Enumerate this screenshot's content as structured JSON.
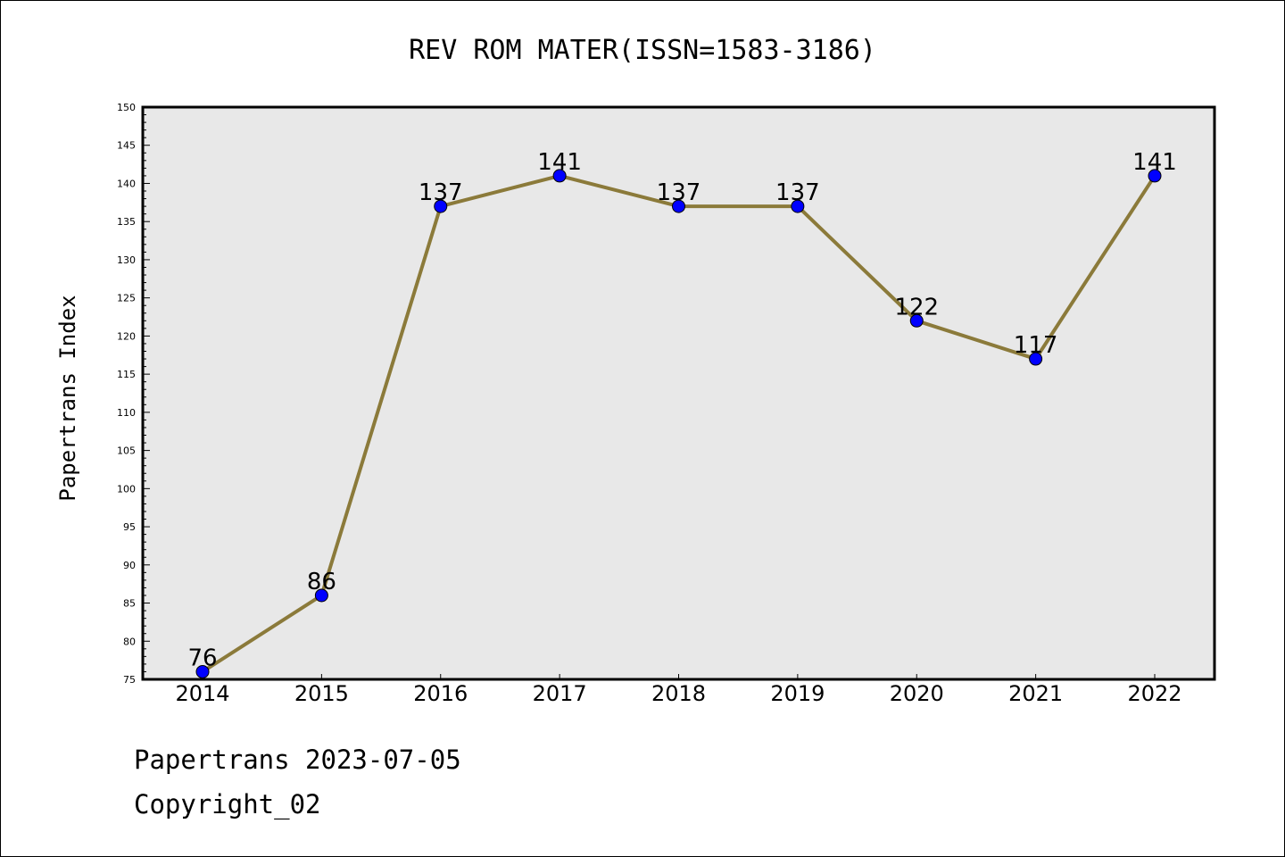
{
  "chart_data": {
    "type": "line",
    "title": "REV ROM MATER(ISSN=1583-3186)",
    "ylabel": "Papertrans Index",
    "xlabel": "",
    "categories": [
      "2014",
      "2015",
      "2016",
      "2017",
      "2018",
      "2019",
      "2020",
      "2021",
      "2022"
    ],
    "series": [
      {
        "values": [
          76,
          86,
          137,
          141,
          137,
          137,
          122,
          117,
          141
        ]
      }
    ],
    "ylim": [
      75,
      150
    ],
    "ytick_step": 5,
    "grid": false,
    "line_color": "#8b7a3a",
    "marker_color": "#0000ff",
    "plot_background": "#e8e8e8"
  },
  "footer": {
    "line1": "Papertrans 2023-07-05",
    "line2": "Copyright_02"
  }
}
